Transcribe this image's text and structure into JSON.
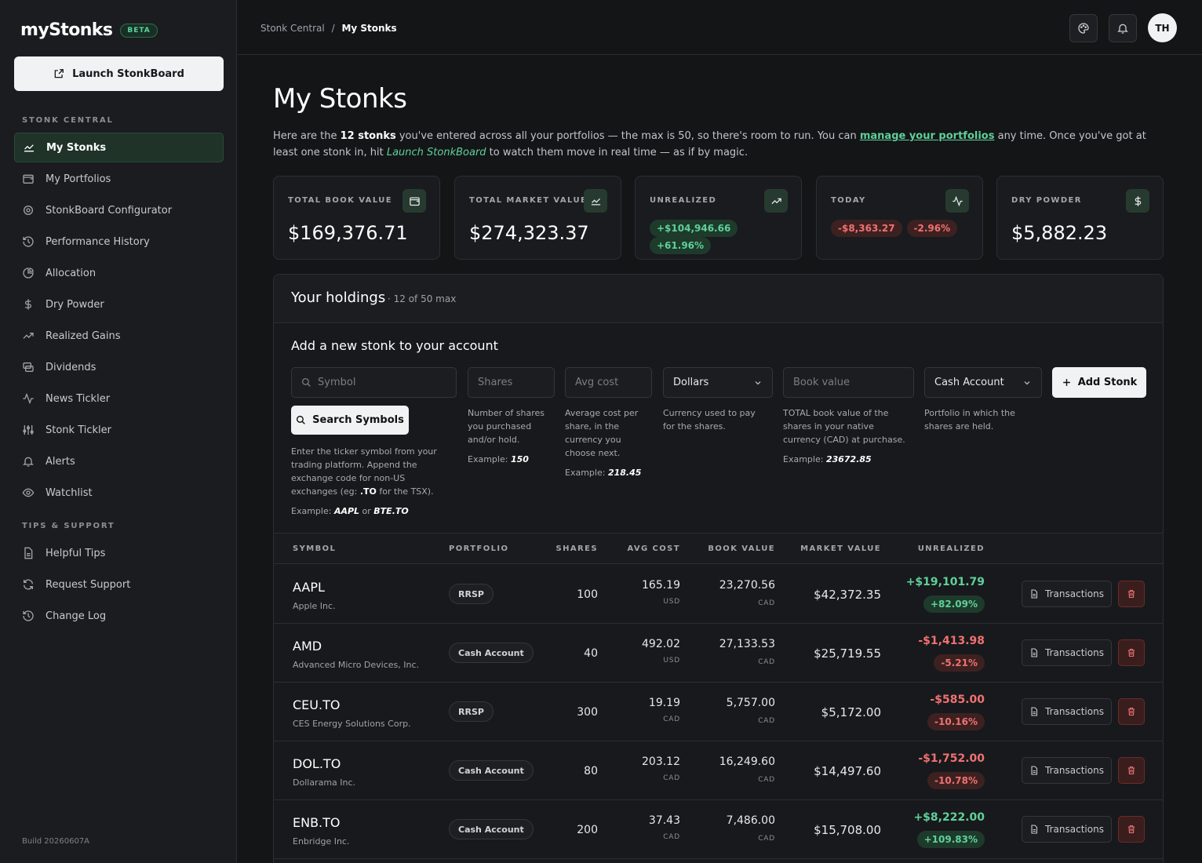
{
  "brand": {
    "logo": "myStonks",
    "badge": "BETA"
  },
  "sidebar": {
    "launch_label": "Launch StonkBoard",
    "section1": "STONK CENTRAL",
    "items": [
      {
        "label": "My Stonks",
        "icon": "chart-line-icon",
        "active": true
      },
      {
        "label": "My Portfolios",
        "icon": "wallet-icon"
      },
      {
        "label": "StonkBoard Configurator",
        "icon": "gear-icon"
      },
      {
        "label": "Performance History",
        "icon": "history-icon"
      },
      {
        "label": "Allocation",
        "icon": "pie-chart-icon"
      },
      {
        "label": "Dry Powder",
        "icon": "dollar-icon"
      },
      {
        "label": "Realized Gains",
        "icon": "trend-up-icon"
      },
      {
        "label": "Dividends",
        "icon": "coins-icon"
      },
      {
        "label": "News Tickler",
        "icon": "activity-icon"
      },
      {
        "label": "Stonk Tickler",
        "icon": "sliders-icon"
      },
      {
        "label": "Alerts",
        "icon": "bell-icon"
      },
      {
        "label": "Watchlist",
        "icon": "eye-icon"
      }
    ],
    "section2": "TIPS & SUPPORT",
    "support_items": [
      {
        "label": "Helpful Tips",
        "icon": "document-icon"
      },
      {
        "label": "Request Support",
        "icon": "refresh-icon"
      },
      {
        "label": "Change Log",
        "icon": "history-icon"
      }
    ],
    "build": "Build 20260607A"
  },
  "topbar": {
    "crumb_root": "Stonk Central",
    "crumb_sep": "/",
    "crumb_current": "My Stonks",
    "avatar": "TH"
  },
  "page": {
    "title": "My Stonks",
    "intro_1": "Here are the ",
    "intro_count": "12 stonks",
    "intro_2": " you've entered across all your portfolios — the max is 50, so there's room to run. You can ",
    "intro_link": "manage your portfolios",
    "intro_3": " any time. Once you've got at least one stonk in, hit ",
    "intro_launch": "Launch StonkBoard",
    "intro_4": " to watch them move in real time — as if by magic."
  },
  "cards": [
    {
      "label": "TOTAL BOOK VALUE",
      "value": "$169,376.71",
      "icon": "wallet-icon"
    },
    {
      "label": "TOTAL MARKET VALUE",
      "value": "$274,323.37",
      "icon": "chart-line-icon"
    },
    {
      "label": "UNREALIZED",
      "pill1": "+$104,946.66",
      "pill2": "+61.96%",
      "icon": "trend-up-icon",
      "tone": "gain"
    },
    {
      "label": "TODAY",
      "pill1": "-$8,363.27",
      "pill2": "-2.96%",
      "icon": "activity-icon",
      "tone": "loss"
    },
    {
      "label": "DRY POWDER",
      "value": "$5,882.23",
      "icon": "dollar-icon"
    }
  ],
  "holdings": {
    "title": "Your holdings",
    "count": "· 12 of 50 max",
    "add_title": "Add a new stonk to your account",
    "symbol_placeholder": "Symbol",
    "shares_placeholder": "Shares",
    "avgcost_placeholder": "Avg cost",
    "currency_value": "Dollars",
    "bookvalue_placeholder": "Book value",
    "portfolio_value": "Cash Account",
    "search_label": "Search Symbols",
    "add_label": "Add Stonk",
    "help_symbol": "Enter the ticker symbol from your trading platform. Append the exchange code for non-US exchanges (eg: ",
    "help_symbol_code": ".TO",
    "help_symbol_end": " for the TSX).",
    "help_symbol_ex_label": "Example: ",
    "help_symbol_ex1": "AAPL",
    "help_symbol_or": " or ",
    "help_symbol_ex2": "BTE.TO",
    "help_shares": "Number of shares you purchased and/or hold.",
    "help_shares_ex_label": "Example: ",
    "help_shares_ex": "150",
    "help_avgcost": "Average cost per share, in the currency you choose next.",
    "help_avgcost_ex_label": "Example: ",
    "help_avgcost_ex": "218.45",
    "help_currency": "Currency used to pay for the shares.",
    "help_bookvalue": "TOTAL book value of the shares in your native currency (CAD) at purchase.",
    "help_bookvalue_ex_label": "Example: ",
    "help_bookvalue_ex": "23672.85",
    "help_portfolio": "Portfolio in which the shares are held.",
    "columns": [
      "SYMBOL",
      "PORTFOLIO",
      "SHARES",
      "AVG COST",
      "BOOK VALUE",
      "MARKET VALUE",
      "UNREALIZED"
    ],
    "tx_label": "Transactions",
    "rows": [
      {
        "symbol": "AAPL",
        "name": "Apple Inc.",
        "portfolio": "RRSP",
        "shares": "100",
        "avg_cost": "165.19",
        "avg_cur": "USD",
        "book": "23,270.56",
        "book_cur": "CAD",
        "market": "$42,372.35",
        "unreal": "+$19,101.79",
        "unreal_pct": "+82.09%",
        "tone": "gain"
      },
      {
        "symbol": "AMD",
        "name": "Advanced Micro Devices, Inc.",
        "portfolio": "Cash Account",
        "shares": "40",
        "avg_cost": "492.02",
        "avg_cur": "USD",
        "book": "27,133.53",
        "book_cur": "CAD",
        "market": "$25,719.55",
        "unreal": "-$1,413.98",
        "unreal_pct": "-5.21%",
        "tone": "loss"
      },
      {
        "symbol": "CEU.TO",
        "name": "CES Energy Solutions Corp.",
        "portfolio": "RRSP",
        "shares": "300",
        "avg_cost": "19.19",
        "avg_cur": "CAD",
        "book": "5,757.00",
        "book_cur": "CAD",
        "market": "$5,172.00",
        "unreal": "-$585.00",
        "unreal_pct": "-10.16%",
        "tone": "loss"
      },
      {
        "symbol": "DOL.TO",
        "name": "Dollarama Inc.",
        "portfolio": "Cash Account",
        "shares": "80",
        "avg_cost": "203.12",
        "avg_cur": "CAD",
        "book": "16,249.60",
        "book_cur": "CAD",
        "market": "$14,497.60",
        "unreal": "-$1,752.00",
        "unreal_pct": "-10.78%",
        "tone": "loss"
      },
      {
        "symbol": "ENB.TO",
        "name": "Enbridge Inc.",
        "portfolio": "Cash Account",
        "shares": "200",
        "avg_cost": "37.43",
        "avg_cur": "CAD",
        "book": "7,486.00",
        "book_cur": "CAD",
        "market": "$15,708.00",
        "unreal": "+$8,222.00",
        "unreal_pct": "+109.83%",
        "tone": "gain"
      }
    ]
  },
  "colors": {
    "accent": "#5ed19a",
    "loss": "#f07171",
    "bg": "#141517"
  }
}
